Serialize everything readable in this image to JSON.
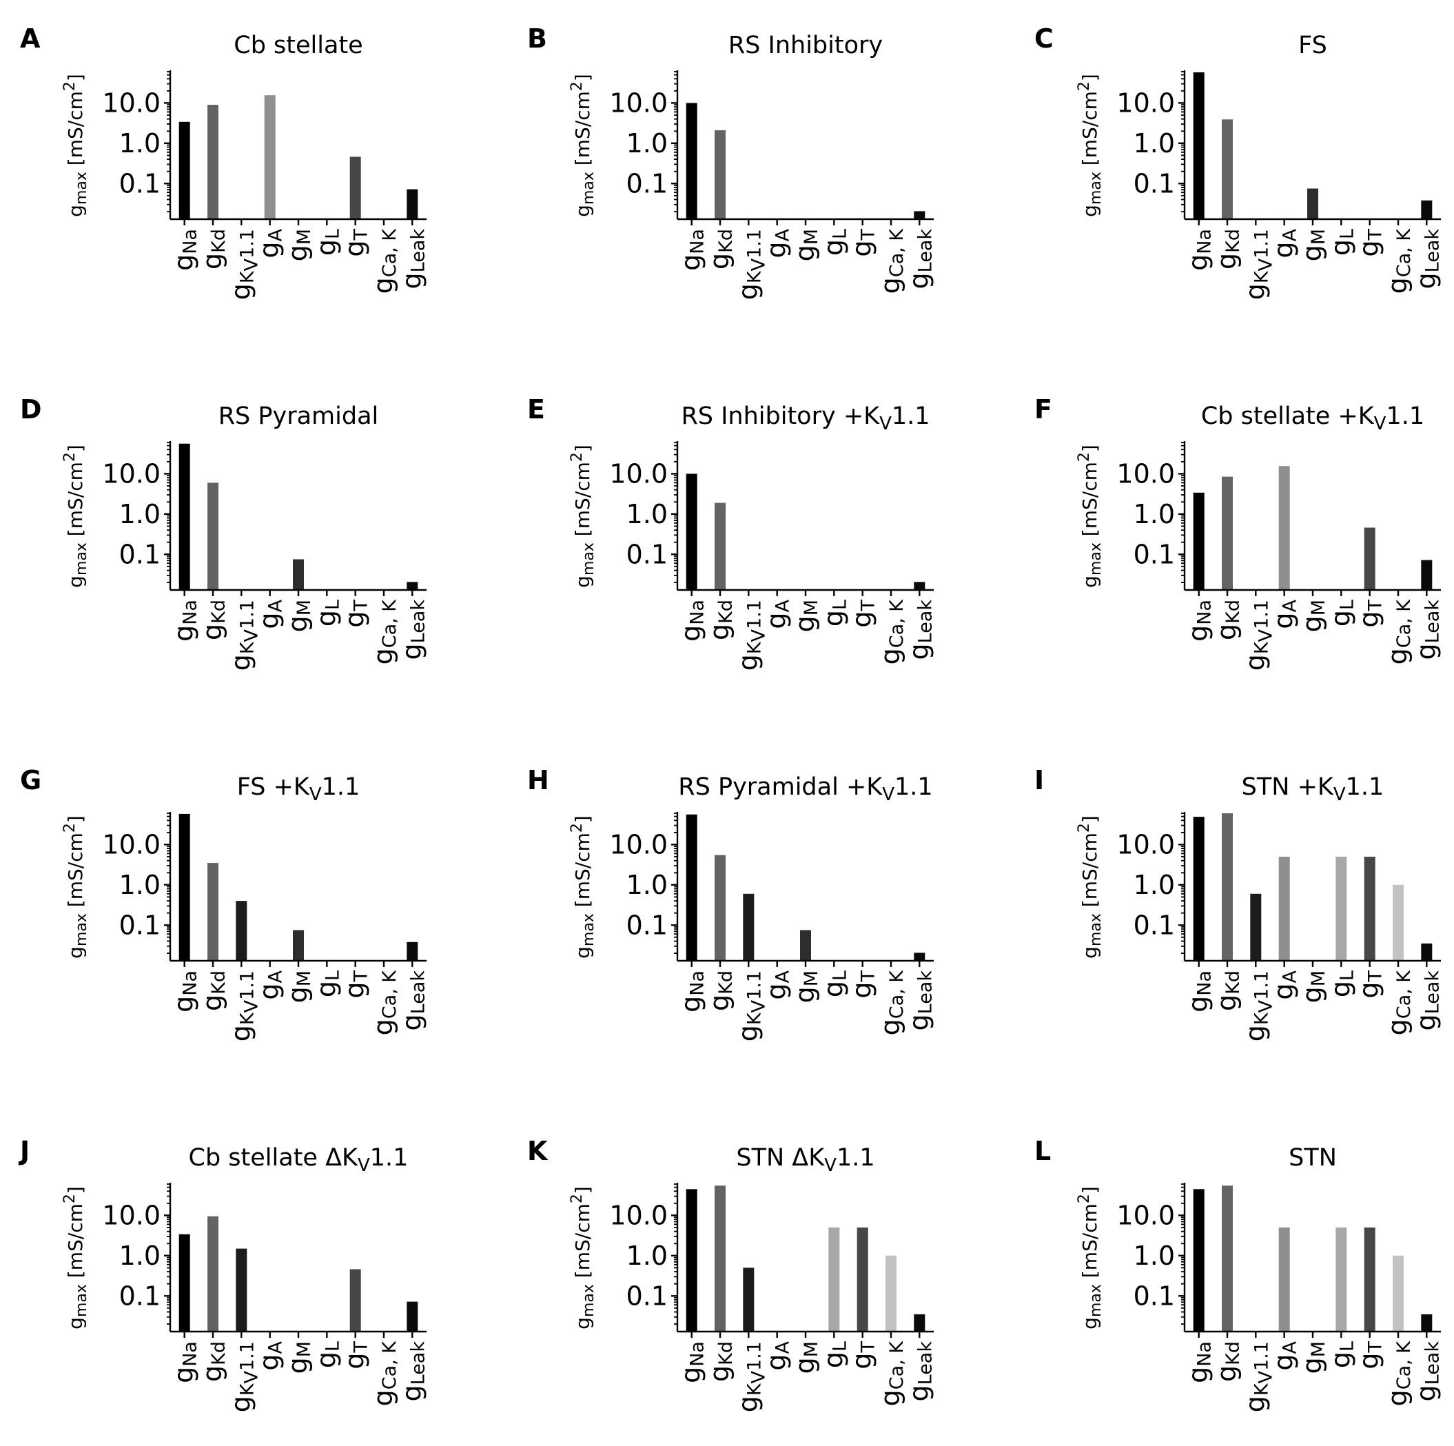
{
  "chart_data": {
    "type": "bar",
    "yscale": "log",
    "ylim": [
      0.013,
      60
    ],
    "yticks": [
      0.1,
      1.0,
      10.0
    ],
    "ytick_labels": [
      "0.1",
      "1.0",
      "10.0"
    ],
    "ylabel": {
      "main": "g",
      "sub": "max",
      "rest": " [mS/cm",
      "sup": "2",
      "end": "]"
    },
    "categories": [
      {
        "main": "g",
        "sub": "Na"
      },
      {
        "main": "g",
        "sub": "Kd"
      },
      {
        "main": "g",
        "sub": "K",
        "subsub": "V",
        "tail": "1.1"
      },
      {
        "main": "g",
        "sub": "A"
      },
      {
        "main": "g",
        "sub": "M"
      },
      {
        "main": "g",
        "sub": "L"
      },
      {
        "main": "g",
        "sub": "T"
      },
      {
        "main": "g",
        "sub": "Ca, K"
      },
      {
        "main": "g",
        "sub": "Leak"
      }
    ],
    "bar_colors": [
      "#000000",
      "#636363",
      "#1c1c1c",
      "#8f8f8f",
      "#2e2e2e",
      "#a8a8a8",
      "#474747",
      "#c2c2c2",
      "#0a0a0a"
    ],
    "panels": [
      {
        "letter": "A",
        "title": "Cb stellate",
        "title_suffix": "",
        "values": [
          3.4,
          9.0,
          0,
          15.6,
          0,
          0,
          0.46,
          0,
          0.072
        ]
      },
      {
        "letter": "B",
        "title": "RS Inhibitory",
        "title_suffix": "",
        "values": [
          10.0,
          2.1,
          0,
          0,
          0,
          0,
          0,
          0,
          0.0205
        ]
      },
      {
        "letter": "C",
        "title": "FS",
        "title_suffix": "",
        "values": [
          58,
          3.9,
          0,
          0,
          0.075,
          0,
          0,
          0,
          0.038
        ]
      },
      {
        "letter": "D",
        "title": "RS Pyramidal",
        "title_suffix": "",
        "values": [
          56,
          6.0,
          0,
          0,
          0.075,
          0,
          0,
          0,
          0.0205
        ]
      },
      {
        "letter": "E",
        "title": "RS Inhibitory +K",
        "title_suffix": "1.1",
        "values": [
          10.0,
          1.9,
          0,
          0,
          0,
          0,
          0,
          0,
          0.0205
        ]
      },
      {
        "letter": "F",
        "title": "Cb stellate +K",
        "title_suffix": "1.1",
        "values": [
          3.4,
          8.5,
          0,
          15.6,
          0,
          0,
          0.46,
          0,
          0.072
        ]
      },
      {
        "letter": "G",
        "title": "FS +K",
        "title_suffix": "1.1",
        "values": [
          58,
          3.5,
          0.4,
          0,
          0.075,
          0,
          0,
          0,
          0.038
        ]
      },
      {
        "letter": "H",
        "title": "RS Pyramidal +K",
        "title_suffix": "1.1",
        "values": [
          56,
          5.5,
          0.6,
          0,
          0.075,
          0,
          0,
          0,
          0.0205
        ]
      },
      {
        "letter": "I",
        "title": "STN +K",
        "title_suffix": "1.1",
        "values": [
          49,
          60,
          0.6,
          5.0,
          0,
          5.0,
          5.0,
          1.0,
          0.035
        ]
      },
      {
        "letter": "J",
        "title": "Cb stellate ΔK",
        "title_suffix": "1.1",
        "values": [
          3.4,
          9.5,
          1.5,
          0,
          0,
          0,
          0.46,
          0,
          0.072
        ]
      },
      {
        "letter": "K",
        "title": "STN ΔK",
        "title_suffix": "1.1",
        "values": [
          45,
          55,
          0.5,
          0,
          0,
          5.0,
          5.0,
          1.0,
          0.035
        ]
      },
      {
        "letter": "L",
        "title": "STN",
        "title_suffix": "",
        "values": [
          45,
          55,
          0,
          5.0,
          0,
          5.0,
          5.0,
          1.0,
          0.035
        ]
      }
    ],
    "title_k_sub": "V",
    "grid": false,
    "legend": "none"
  }
}
